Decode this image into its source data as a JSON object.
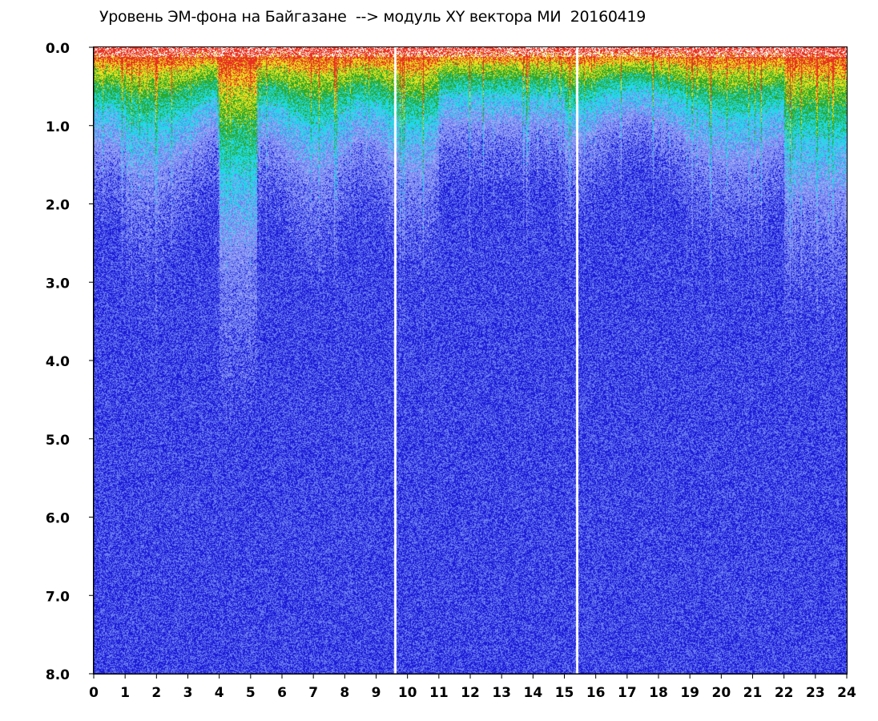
{
  "chart_data": {
    "type": "heatmap",
    "title": "Уровень ЭМ-фона на Байгазане  --> модуль XY вектора МИ  20160419",
    "x_ticks": [
      "0",
      "1",
      "2",
      "3",
      "4",
      "5",
      "6",
      "7",
      "8",
      "9",
      "10",
      "11",
      "12",
      "13",
      "14",
      "15",
      "16",
      "17",
      "18",
      "19",
      "20",
      "21",
      "22",
      "23",
      "24"
    ],
    "y_ticks": [
      "0.0",
      "1.0",
      "2.0",
      "3.0",
      "4.0",
      "5.0",
      "6.0",
      "7.0",
      "8.0"
    ],
    "xlim": [
      0,
      24
    ],
    "ylim": [
      0,
      8
    ],
    "y_inverted": true,
    "colormap": [
      "#1a1ad8",
      "#6b7cf0",
      "#9fa9f6",
      "#20d8e8",
      "#2aa82a",
      "#e8e020",
      "#e83020"
    ],
    "white_gaps_x": [
      9.6,
      15.4
    ]
  }
}
